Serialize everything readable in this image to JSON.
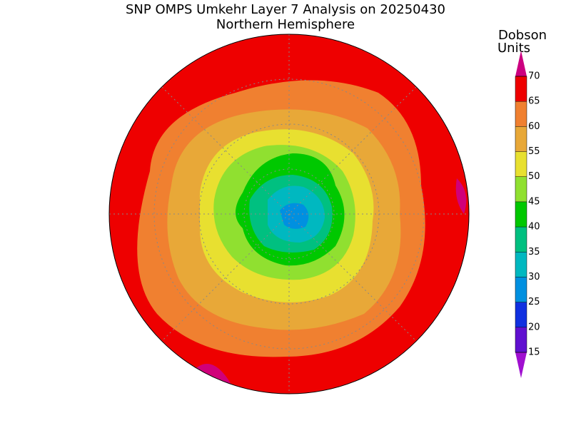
{
  "header": {
    "title": "SNP OMPS Umkehr Layer 7 Analysis on 20250430",
    "subtitle": "Northern Hemisphere"
  },
  "colorbar": {
    "label": [
      "Dobson",
      "Units"
    ],
    "levels": [
      15,
      20,
      25,
      30,
      35,
      40,
      45,
      50,
      55,
      60,
      65,
      70
    ],
    "colors": [
      "#a010d0",
      "#6010d0",
      "#1030e0",
      "#0090e0",
      "#00b8c0",
      "#00c080",
      "#00c800",
      "#90e030",
      "#e8e030",
      "#e8a838",
      "#f08030",
      "#ee0000",
      "#cc0080"
    ]
  }
}
